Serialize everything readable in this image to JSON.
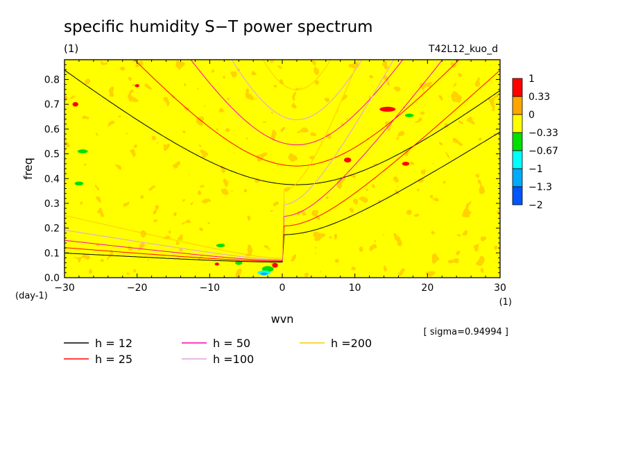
{
  "chart_data": {
    "type": "heatmap",
    "title": "specific humidity S−T power spectrum",
    "subtitle": "(1)",
    "run_label": "T42L12_kuo_d",
    "xlabel": "wvn",
    "ylabel": "freq",
    "x_units": "(1)",
    "y_units": "(day-1)",
    "xlim": [
      -30,
      30
    ],
    "ylim": [
      0,
      0.88
    ],
    "x_ticks": [
      -30,
      -20,
      -10,
      0,
      10,
      20,
      30
    ],
    "x_tick_labels": [
      "−30",
      "−20",
      "−10",
      "0",
      "10",
      "20",
      "30"
    ],
    "y_ticks": [
      0,
      0.1,
      0.2,
      0.3,
      0.4,
      0.5,
      0.6,
      0.7,
      0.8
    ],
    "y_tick_labels": [
      "0.0",
      "0.1",
      "0.2",
      "0.3",
      "0.4",
      "0.5",
      "0.6",
      "0.7",
      "0.8"
    ],
    "sigma_label": "[ sigma=0.94994 ]",
    "colorbar": {
      "levels": [
        "1",
        "0.33",
        "0",
        "−0.33",
        "−0.67",
        "−1",
        "−1.3",
        "−2"
      ],
      "bands": [
        {
          "range": [
            0.33,
            1
          ],
          "color": "#ff0000"
        },
        {
          "range": [
            0,
            0.33
          ],
          "color": "#ffa500"
        },
        {
          "range": [
            -0.33,
            0
          ],
          "color": "#ffff00"
        },
        {
          "range": [
            -0.67,
            -0.33
          ],
          "color": "#00e000"
        },
        {
          "range": [
            -1,
            -0.67
          ],
          "color": "#00ffff"
        },
        {
          "range": [
            -1.3,
            -1
          ],
          "color": "#00aaff"
        },
        {
          "range": [
            -2,
            -1.3
          ],
          "color": "#0055ff"
        }
      ]
    },
    "field": {
      "background": "mixed orange (0 to 0.33) and yellow (-0.33 to 0) noise",
      "spots": [
        {
          "name": "red",
          "x": -28.5,
          "y": 0.7,
          "rx": 0.4,
          "ry": 0.009,
          "color": "#ff0000"
        },
        {
          "name": "red",
          "x": -20,
          "y": 0.775,
          "rx": 0.3,
          "ry": 0.006,
          "color": "#ff0000"
        },
        {
          "name": "red",
          "x": 14.5,
          "y": 0.68,
          "rx": 1.1,
          "ry": 0.01,
          "color": "#ff0000"
        },
        {
          "name": "red",
          "x": 9,
          "y": 0.475,
          "rx": 0.5,
          "ry": 0.01,
          "color": "#ff0000"
        },
        {
          "name": "red",
          "x": 17,
          "y": 0.46,
          "rx": 0.5,
          "ry": 0.008,
          "color": "#ff0000"
        },
        {
          "name": "red",
          "x": -1,
          "y": 0.05,
          "rx": 0.4,
          "ry": 0.01,
          "color": "#ff0000"
        },
        {
          "name": "red",
          "x": -9,
          "y": 0.055,
          "rx": 0.3,
          "ry": 0.006,
          "color": "#ff0000"
        },
        {
          "name": "green",
          "x": -27.5,
          "y": 0.51,
          "rx": 0.7,
          "ry": 0.008,
          "color": "#00e000"
        },
        {
          "name": "green",
          "x": -28,
          "y": 0.38,
          "rx": 0.6,
          "ry": 0.008,
          "color": "#00e000"
        },
        {
          "name": "green",
          "x": 17.5,
          "y": 0.655,
          "rx": 0.6,
          "ry": 0.007,
          "color": "#00e000"
        },
        {
          "name": "green",
          "x": -8.5,
          "y": 0.13,
          "rx": 0.6,
          "ry": 0.007,
          "color": "#00e000"
        },
        {
          "name": "green",
          "x": -6,
          "y": 0.06,
          "rx": 0.5,
          "ry": 0.008,
          "color": "#00e000"
        },
        {
          "name": "green",
          "x": -2,
          "y": 0.035,
          "rx": 0.8,
          "ry": 0.012,
          "color": "#00e000"
        },
        {
          "name": "cyan",
          "x": -2.5,
          "y": 0.02,
          "rx": 0.9,
          "ry": 0.009,
          "color": "#00ffff"
        },
        {
          "name": "blue",
          "x": -2.5,
          "y": 0.015,
          "rx": 0.5,
          "ry": 0.005,
          "color": "#00aaff"
        }
      ]
    },
    "series": [
      {
        "name": "h = 12",
        "color": "#000000",
        "h": 12
      },
      {
        "name": "h = 25",
        "color": "#ff0000",
        "h": 25
      },
      {
        "name": "h = 50",
        "color": "#ff00aa",
        "h": 50
      },
      {
        "name": "h =100",
        "color": "#e0a0e0",
        "h": 100
      },
      {
        "name": "h =200",
        "color": "#ffcc00",
        "h": 200
      }
    ],
    "legend_placement": "bottom"
  }
}
